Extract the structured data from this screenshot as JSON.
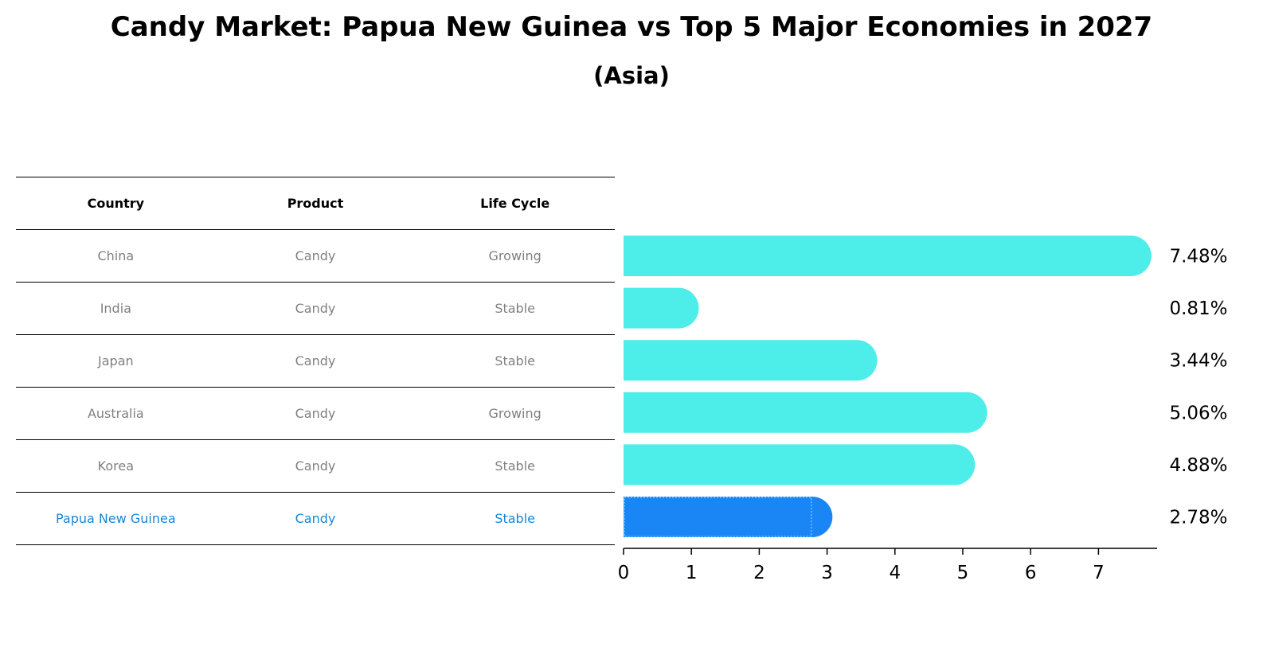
{
  "title": "Candy Market: Papua New Guinea vs Top 5 Major Economies in 2027",
  "subtitle": "(Asia)",
  "table": {
    "headers": [
      "Country",
      "Product",
      "Life Cycle"
    ],
    "rows": [
      {
        "country": "China",
        "product": "Candy",
        "life_cycle": "Growing"
      },
      {
        "country": "India",
        "product": "Candy",
        "life_cycle": "Stable"
      },
      {
        "country": "Japan",
        "product": "Candy",
        "life_cycle": "Stable"
      },
      {
        "country": "Australia",
        "product": "Candy",
        "life_cycle": "Growing"
      },
      {
        "country": "Korea",
        "product": "Candy",
        "life_cycle": "Stable"
      },
      {
        "country": "Papua New Guinea",
        "product": "Candy",
        "life_cycle": "Stable"
      }
    ]
  },
  "chart_data": {
    "type": "bar",
    "orientation": "horizontal",
    "categories": [
      "China",
      "India",
      "Japan",
      "Australia",
      "Korea",
      "Papua New Guinea"
    ],
    "values": [
      7.48,
      0.81,
      3.44,
      5.06,
      4.88,
      2.78
    ],
    "value_labels": [
      "7.48%",
      "0.81%",
      "3.44%",
      "5.06%",
      "4.88%",
      "2.78%"
    ],
    "highlight_index": 5,
    "xlim": [
      0,
      7.85
    ],
    "xticks": [
      0,
      1,
      2,
      3,
      4,
      5,
      6,
      7
    ],
    "grid": false,
    "colors": {
      "default": "#4dede9",
      "highlight": "#1a86f5",
      "highlight_text": "#1a86d6",
      "muted_text": "#808080"
    }
  }
}
